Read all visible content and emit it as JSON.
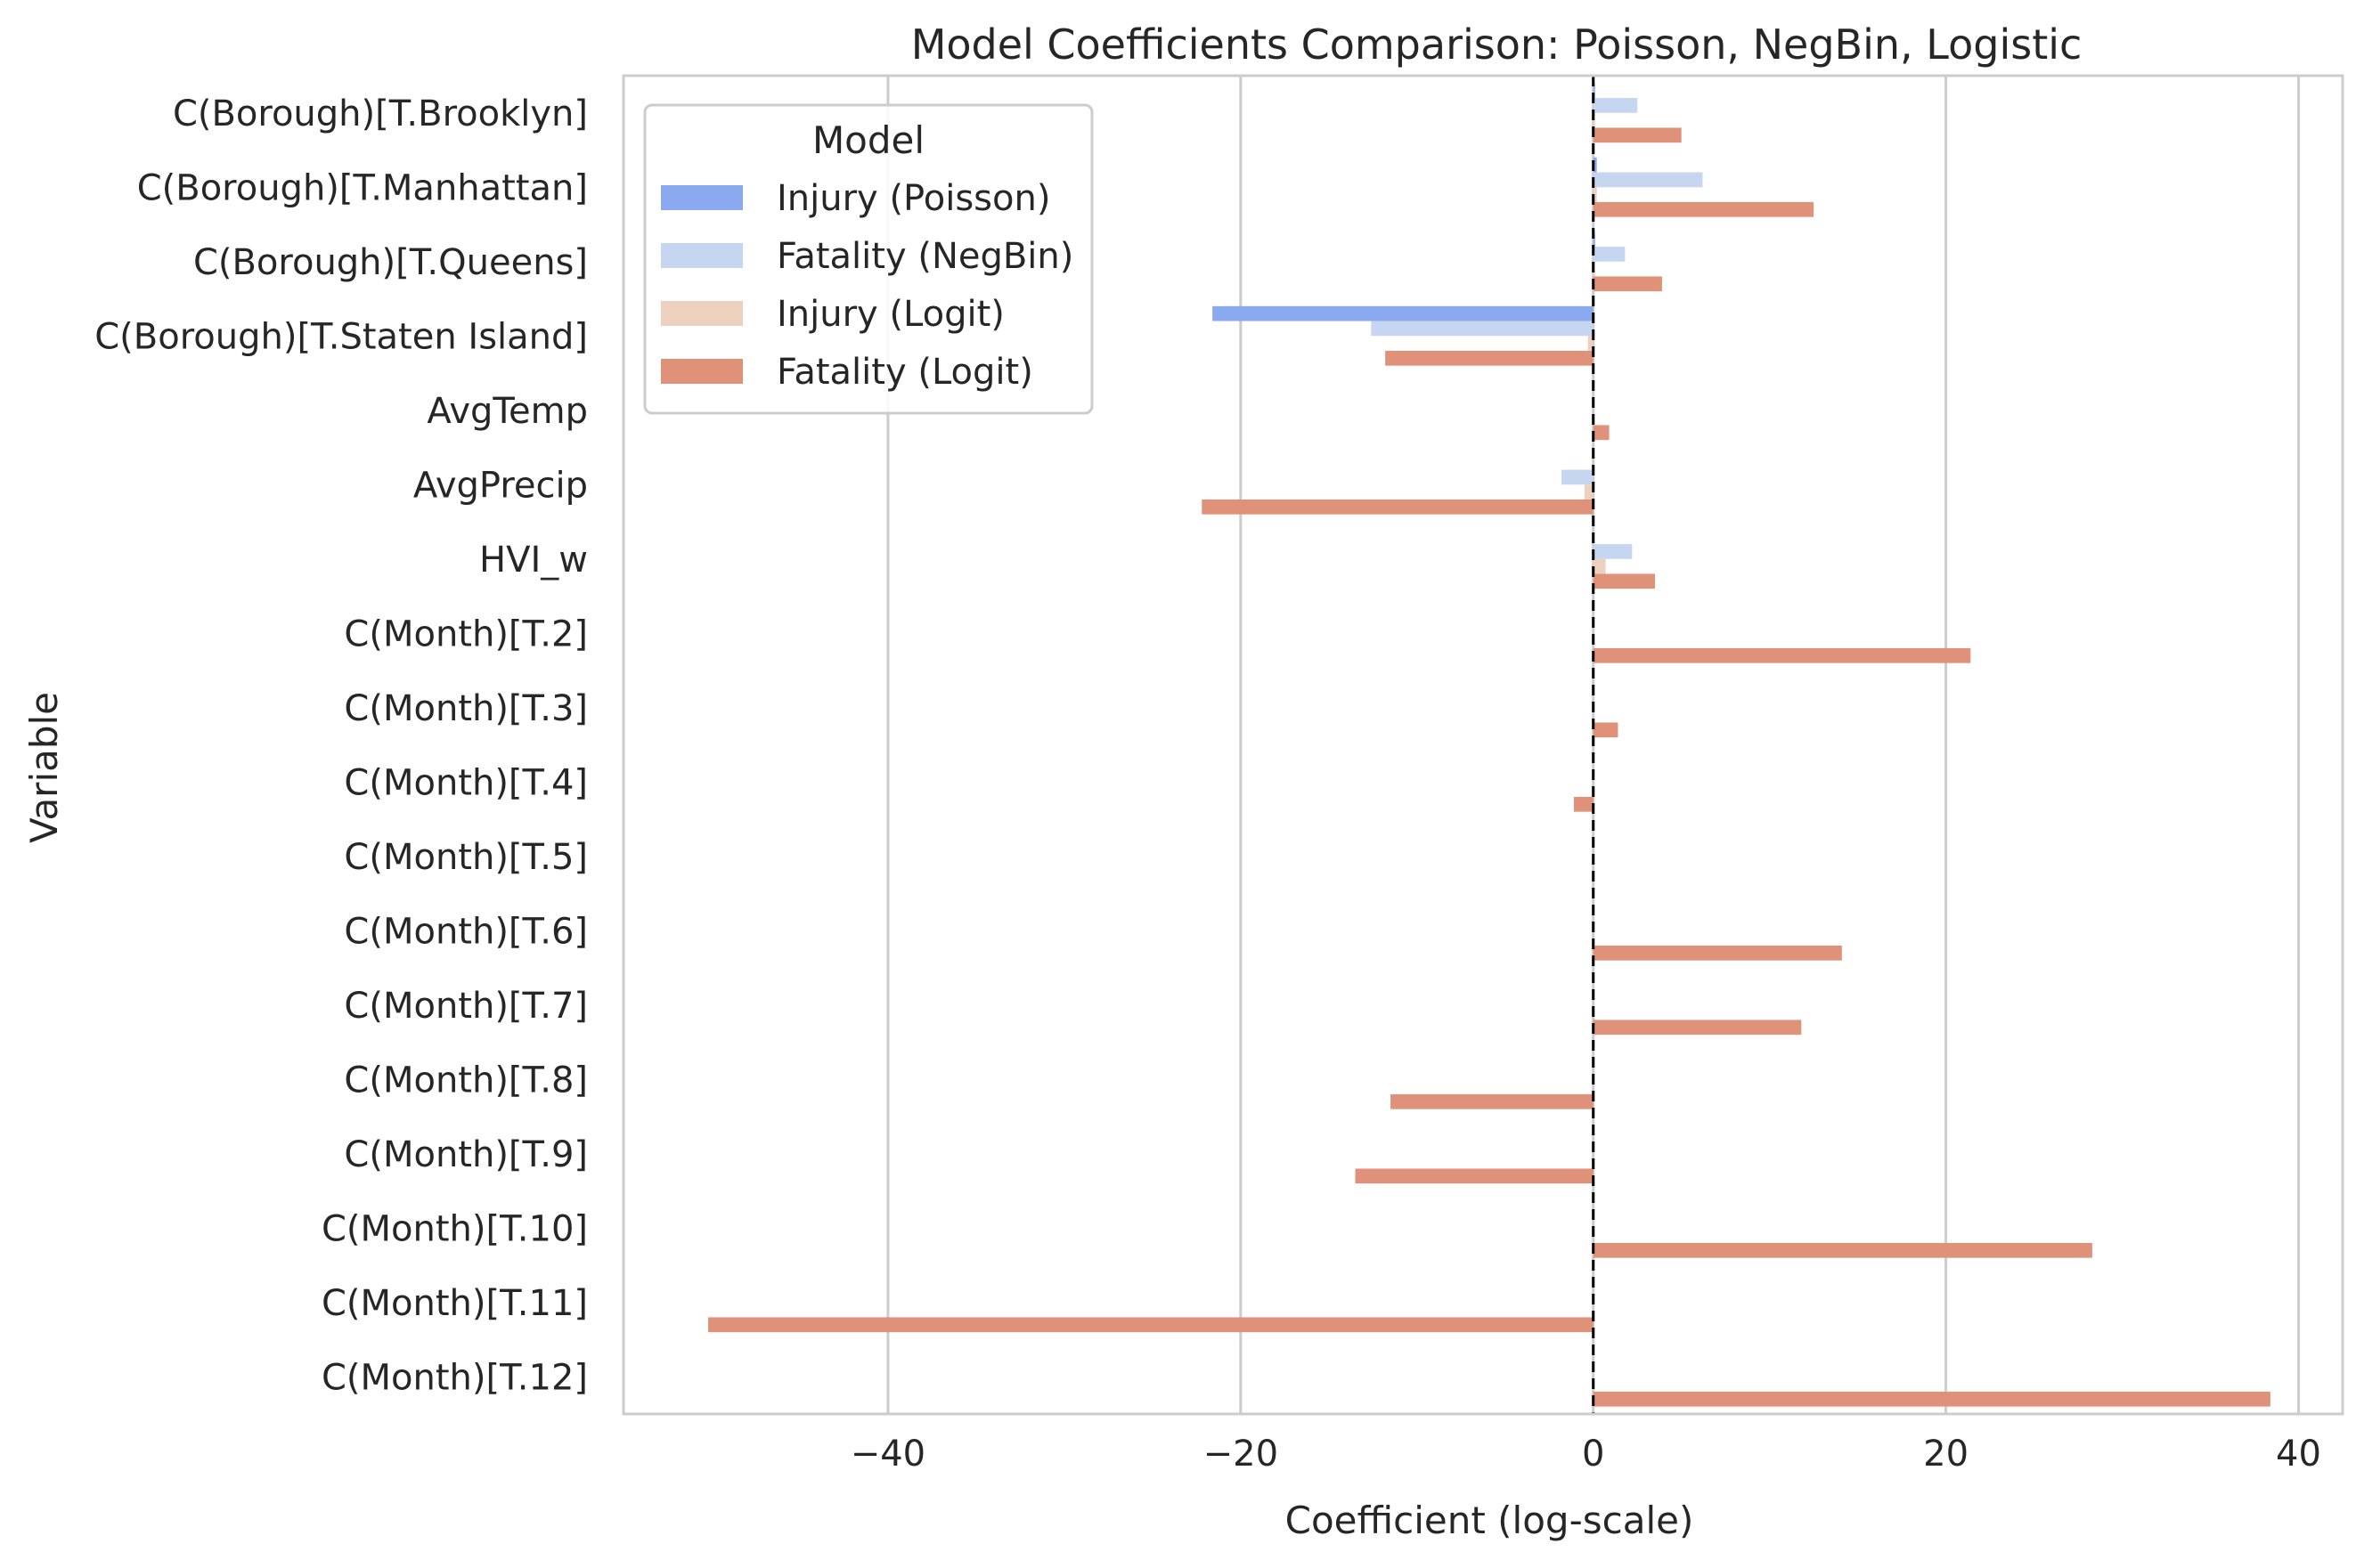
{
  "chart_data": {
    "type": "bar",
    "orientation": "horizontal",
    "title": "Model Coefficients Comparison: Poisson, NegBin, Logistic",
    "xlabel": "Coefficient (log-scale)",
    "ylabel": "Variable",
    "xlim": [
      -55,
      42.5
    ],
    "xticks": [
      -40,
      -20,
      0,
      20,
      40
    ],
    "xtick_labels": [
      "−40",
      "−20",
      "0",
      "20",
      "40"
    ],
    "grid": "vertical",
    "reference_line": 0,
    "legend": {
      "title": "Model",
      "placement": "upper-left"
    },
    "categories": [
      "C(Borough)[T.Brooklyn]",
      "C(Borough)[T.Manhattan]",
      "C(Borough)[T.Queens]",
      "C(Borough)[T.Staten Island]",
      "AvgTemp",
      "AvgPrecip",
      "HVI_w",
      "C(Month)[T.2]",
      "C(Month)[T.3]",
      "C(Month)[T.4]",
      "C(Month)[T.5]",
      "C(Month)[T.6]",
      "C(Month)[T.7]",
      "C(Month)[T.8]",
      "C(Month)[T.9]",
      "C(Month)[T.10]",
      "C(Month)[T.11]",
      "C(Month)[T.12]"
    ],
    "series": [
      {
        "name": "Injury (Poisson)",
        "color": "#8aa9ee",
        "values": [
          0.1,
          0.2,
          0.1,
          -21.6,
          0.0,
          0.0,
          0.0,
          0.0,
          0.0,
          0.0,
          0.0,
          0.0,
          0.0,
          0.0,
          0.0,
          0.0,
          0.0,
          0.0
        ]
      },
      {
        "name": "Fatality (NegBin)",
        "color": "#c6d6f0",
        "values": [
          2.5,
          6.2,
          1.8,
          -12.6,
          0.0,
          -1.8,
          2.2,
          0.0,
          0.0,
          0.0,
          0.0,
          0.0,
          0.0,
          0.0,
          0.0,
          0.0,
          0.0,
          0.0
        ]
      },
      {
        "name": "Injury (Logit)",
        "color": "#eed0bf",
        "values": [
          0.1,
          0.2,
          0.1,
          -0.3,
          0.0,
          -0.5,
          0.7,
          0.0,
          0.0,
          0.0,
          0.0,
          0.0,
          0.0,
          0.0,
          0.0,
          0.0,
          0.0,
          0.0
        ]
      },
      {
        "name": "Fatality (Logit)",
        "color": "#e0917a",
        "values": [
          5.0,
          12.5,
          3.9,
          -11.8,
          0.9,
          -22.2,
          3.5,
          21.4,
          1.4,
          -1.1,
          0.0,
          14.1,
          11.8,
          -11.5,
          -13.5,
          28.3,
          -50.2,
          38.4
        ]
      }
    ]
  }
}
